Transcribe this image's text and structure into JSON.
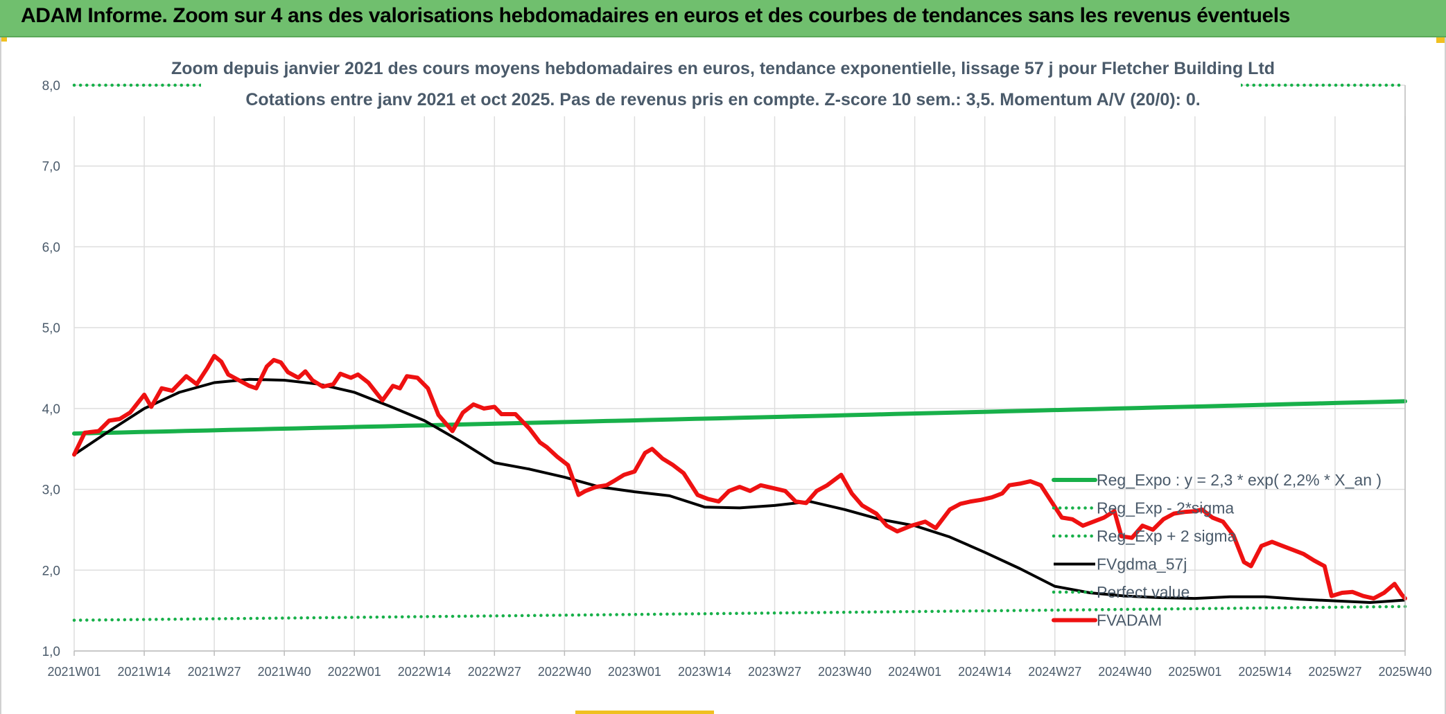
{
  "header": {
    "title": "ADAM Informe. Zoom sur 4 ans des valorisations hebdomadaires en euros et des courbes de tendances sans les revenus éventuels"
  },
  "colors": {
    "banner": "#70bf6e",
    "reg_expo": "#18b04a",
    "fvgdma": "#000000",
    "fvadam": "#ee1111",
    "grid": "#dedede",
    "text": "#4a5a6a"
  },
  "chart_data": {
    "type": "line",
    "title_line1": "Zoom depuis janvier 2021 des cours moyens hebdomadaires en euros, tendance exponentielle, lissage 57 j pour Fletcher Building Ltd",
    "title_line2": "Cotations entre janv 2021 et oct 2025. Pas de revenus pris en compte. Z-score 10 sem.: 3,5. Momentum A/V (20/0): 0.",
    "xlabel": "",
    "ylabel": "",
    "ylim": [
      1.0,
      8.0
    ],
    "grid": true,
    "legend_position": "bottom-right",
    "y_ticks": [
      "1,0",
      "2,0",
      "3,0",
      "4,0",
      "5,0",
      "6,0",
      "7,0",
      "8,0"
    ],
    "x_ticks": [
      "2021W01",
      "2021W14",
      "2021W27",
      "2021W40",
      "2022W01",
      "2022W14",
      "2022W27",
      "2022W40",
      "2023W01",
      "2023W14",
      "2023W27",
      "2023W40",
      "2024W01",
      "2024W14",
      "2024W27",
      "2024W40",
      "2025W01",
      "2025W14",
      "2025W27",
      "2025W40"
    ],
    "series": [
      {
        "name": "Reg_Expo : y = 2,3 * exp( 2,2% *  X_an )",
        "style": "solid-thick",
        "color": "#18b04a",
        "points": [
          [
            0,
            3.69
          ],
          [
            19,
            4.09
          ]
        ]
      },
      {
        "name": "Reg_Exp - 2*sigma",
        "style": "dotted",
        "color": "#18b04a",
        "points": [
          [
            0,
            1.38
          ],
          [
            19,
            1.55
          ]
        ]
      },
      {
        "name": "Reg_Exp + 2 sigma",
        "style": "dotted",
        "color": "#18b04a",
        "points": [
          [
            0,
            8.0
          ],
          [
            19,
            8.0
          ]
        ]
      },
      {
        "name": "FVgdma_57j",
        "style": "solid",
        "color": "#000000",
        "points": [
          [
            0,
            3.43
          ],
          [
            0.5,
            3.72
          ],
          [
            1,
            4.0
          ],
          [
            1.5,
            4.2
          ],
          [
            2,
            4.32
          ],
          [
            2.5,
            4.36
          ],
          [
            3,
            4.35
          ],
          [
            3.5,
            4.3
          ],
          [
            4,
            4.2
          ],
          [
            4.5,
            4.03
          ],
          [
            5,
            3.85
          ],
          [
            5.5,
            3.6
          ],
          [
            6,
            3.33
          ],
          [
            6.5,
            3.25
          ],
          [
            7,
            3.15
          ],
          [
            7.5,
            3.03
          ],
          [
            8,
            2.97
          ],
          [
            8.5,
            2.92
          ],
          [
            9,
            2.78
          ],
          [
            9.5,
            2.77
          ],
          [
            10,
            2.8
          ],
          [
            10.5,
            2.85
          ],
          [
            11,
            2.75
          ],
          [
            11.5,
            2.63
          ],
          [
            12,
            2.55
          ],
          [
            12.5,
            2.41
          ],
          [
            13,
            2.22
          ],
          [
            13.5,
            2.02
          ],
          [
            14,
            1.8
          ],
          [
            14.5,
            1.72
          ],
          [
            15,
            1.68
          ],
          [
            15.5,
            1.66
          ],
          [
            16,
            1.65
          ],
          [
            16.5,
            1.67
          ],
          [
            17,
            1.67
          ],
          [
            17.5,
            1.64
          ],
          [
            18,
            1.62
          ],
          [
            18.5,
            1.6
          ],
          [
            19,
            1.63
          ]
        ]
      },
      {
        "name": "Perfect value",
        "style": "dotted",
        "color": "#18b04a",
        "points": []
      },
      {
        "name": "FVADAM",
        "style": "solid-thick",
        "color": "#ee1111",
        "points": [
          [
            0,
            3.43
          ],
          [
            0.15,
            3.7
          ],
          [
            0.35,
            3.72
          ],
          [
            0.5,
            3.85
          ],
          [
            0.65,
            3.87
          ],
          [
            0.8,
            3.95
          ],
          [
            1,
            4.17
          ],
          [
            1.1,
            4.02
          ],
          [
            1.25,
            4.25
          ],
          [
            1.4,
            4.22
          ],
          [
            1.6,
            4.4
          ],
          [
            1.75,
            4.3
          ],
          [
            1.9,
            4.5
          ],
          [
            2.0,
            4.65
          ],
          [
            2.1,
            4.58
          ],
          [
            2.2,
            4.42
          ],
          [
            2.35,
            4.35
          ],
          [
            2.5,
            4.28
          ],
          [
            2.6,
            4.25
          ],
          [
            2.75,
            4.52
          ],
          [
            2.85,
            4.6
          ],
          [
            2.95,
            4.57
          ],
          [
            3.05,
            4.45
          ],
          [
            3.2,
            4.38
          ],
          [
            3.3,
            4.46
          ],
          [
            3.4,
            4.35
          ],
          [
            3.55,
            4.27
          ],
          [
            3.7,
            4.3
          ],
          [
            3.8,
            4.43
          ],
          [
            3.95,
            4.38
          ],
          [
            4.05,
            4.42
          ],
          [
            4.2,
            4.32
          ],
          [
            4.4,
            4.1
          ],
          [
            4.55,
            4.28
          ],
          [
            4.65,
            4.25
          ],
          [
            4.75,
            4.4
          ],
          [
            4.9,
            4.38
          ],
          [
            5.05,
            4.25
          ],
          [
            5.2,
            3.92
          ],
          [
            5.4,
            3.72
          ],
          [
            5.55,
            3.95
          ],
          [
            5.7,
            4.05
          ],
          [
            5.85,
            4.0
          ],
          [
            6.0,
            4.02
          ],
          [
            6.1,
            3.93
          ],
          [
            6.3,
            3.93
          ],
          [
            6.5,
            3.75
          ],
          [
            6.65,
            3.58
          ],
          [
            6.75,
            3.52
          ],
          [
            6.9,
            3.4
          ],
          [
            7.05,
            3.3
          ],
          [
            7.2,
            2.93
          ],
          [
            7.3,
            2.98
          ],
          [
            7.45,
            3.03
          ],
          [
            7.6,
            3.05
          ],
          [
            7.7,
            3.1
          ],
          [
            7.85,
            3.18
          ],
          [
            8.0,
            3.22
          ],
          [
            8.15,
            3.45
          ],
          [
            8.25,
            3.5
          ],
          [
            8.4,
            3.38
          ],
          [
            8.55,
            3.3
          ],
          [
            8.7,
            3.2
          ],
          [
            8.9,
            2.93
          ],
          [
            9.05,
            2.88
          ],
          [
            9.2,
            2.85
          ],
          [
            9.35,
            2.98
          ],
          [
            9.5,
            3.03
          ],
          [
            9.65,
            2.98
          ],
          [
            9.8,
            3.05
          ],
          [
            9.95,
            3.02
          ],
          [
            10.15,
            2.98
          ],
          [
            10.3,
            2.85
          ],
          [
            10.45,
            2.83
          ],
          [
            10.6,
            2.98
          ],
          [
            10.75,
            3.05
          ],
          [
            10.95,
            3.18
          ],
          [
            11.1,
            2.95
          ],
          [
            11.25,
            2.8
          ],
          [
            11.45,
            2.7
          ],
          [
            11.6,
            2.55
          ],
          [
            11.75,
            2.48
          ],
          [
            11.95,
            2.55
          ],
          [
            12.15,
            2.6
          ],
          [
            12.3,
            2.52
          ],
          [
            12.5,
            2.75
          ],
          [
            12.65,
            2.82
          ],
          [
            12.8,
            2.85
          ],
          [
            12.95,
            2.87
          ],
          [
            13.1,
            2.9
          ],
          [
            13.25,
            2.95
          ],
          [
            13.35,
            3.05
          ],
          [
            13.5,
            3.07
          ],
          [
            13.65,
            3.1
          ],
          [
            13.8,
            3.05
          ],
          [
            13.95,
            2.85
          ],
          [
            14.1,
            2.65
          ],
          [
            14.25,
            2.63
          ],
          [
            14.4,
            2.55
          ],
          [
            14.55,
            2.6
          ],
          [
            14.7,
            2.65
          ],
          [
            14.85,
            2.73
          ],
          [
            14.95,
            2.42
          ],
          [
            15.1,
            2.4
          ],
          [
            15.25,
            2.55
          ],
          [
            15.4,
            2.5
          ],
          [
            15.55,
            2.63
          ],
          [
            15.7,
            2.7
          ],
          [
            15.85,
            2.72
          ],
          [
            16.0,
            2.73
          ],
          [
            16.1,
            2.75
          ],
          [
            16.25,
            2.65
          ],
          [
            16.4,
            2.6
          ],
          [
            16.55,
            2.43
          ],
          [
            16.7,
            2.1
          ],
          [
            16.8,
            2.05
          ],
          [
            16.95,
            2.3
          ],
          [
            17.1,
            2.35
          ],
          [
            17.25,
            2.3
          ],
          [
            17.4,
            2.25
          ],
          [
            17.55,
            2.2
          ],
          [
            17.7,
            2.12
          ],
          [
            17.85,
            2.05
          ],
          [
            17.95,
            1.68
          ],
          [
            18.1,
            1.72
          ],
          [
            18.25,
            1.73
          ],
          [
            18.4,
            1.68
          ],
          [
            18.55,
            1.65
          ],
          [
            18.7,
            1.72
          ],
          [
            18.85,
            1.83
          ],
          [
            18.95,
            1.7
          ],
          [
            19.0,
            1.65
          ]
        ]
      }
    ]
  }
}
